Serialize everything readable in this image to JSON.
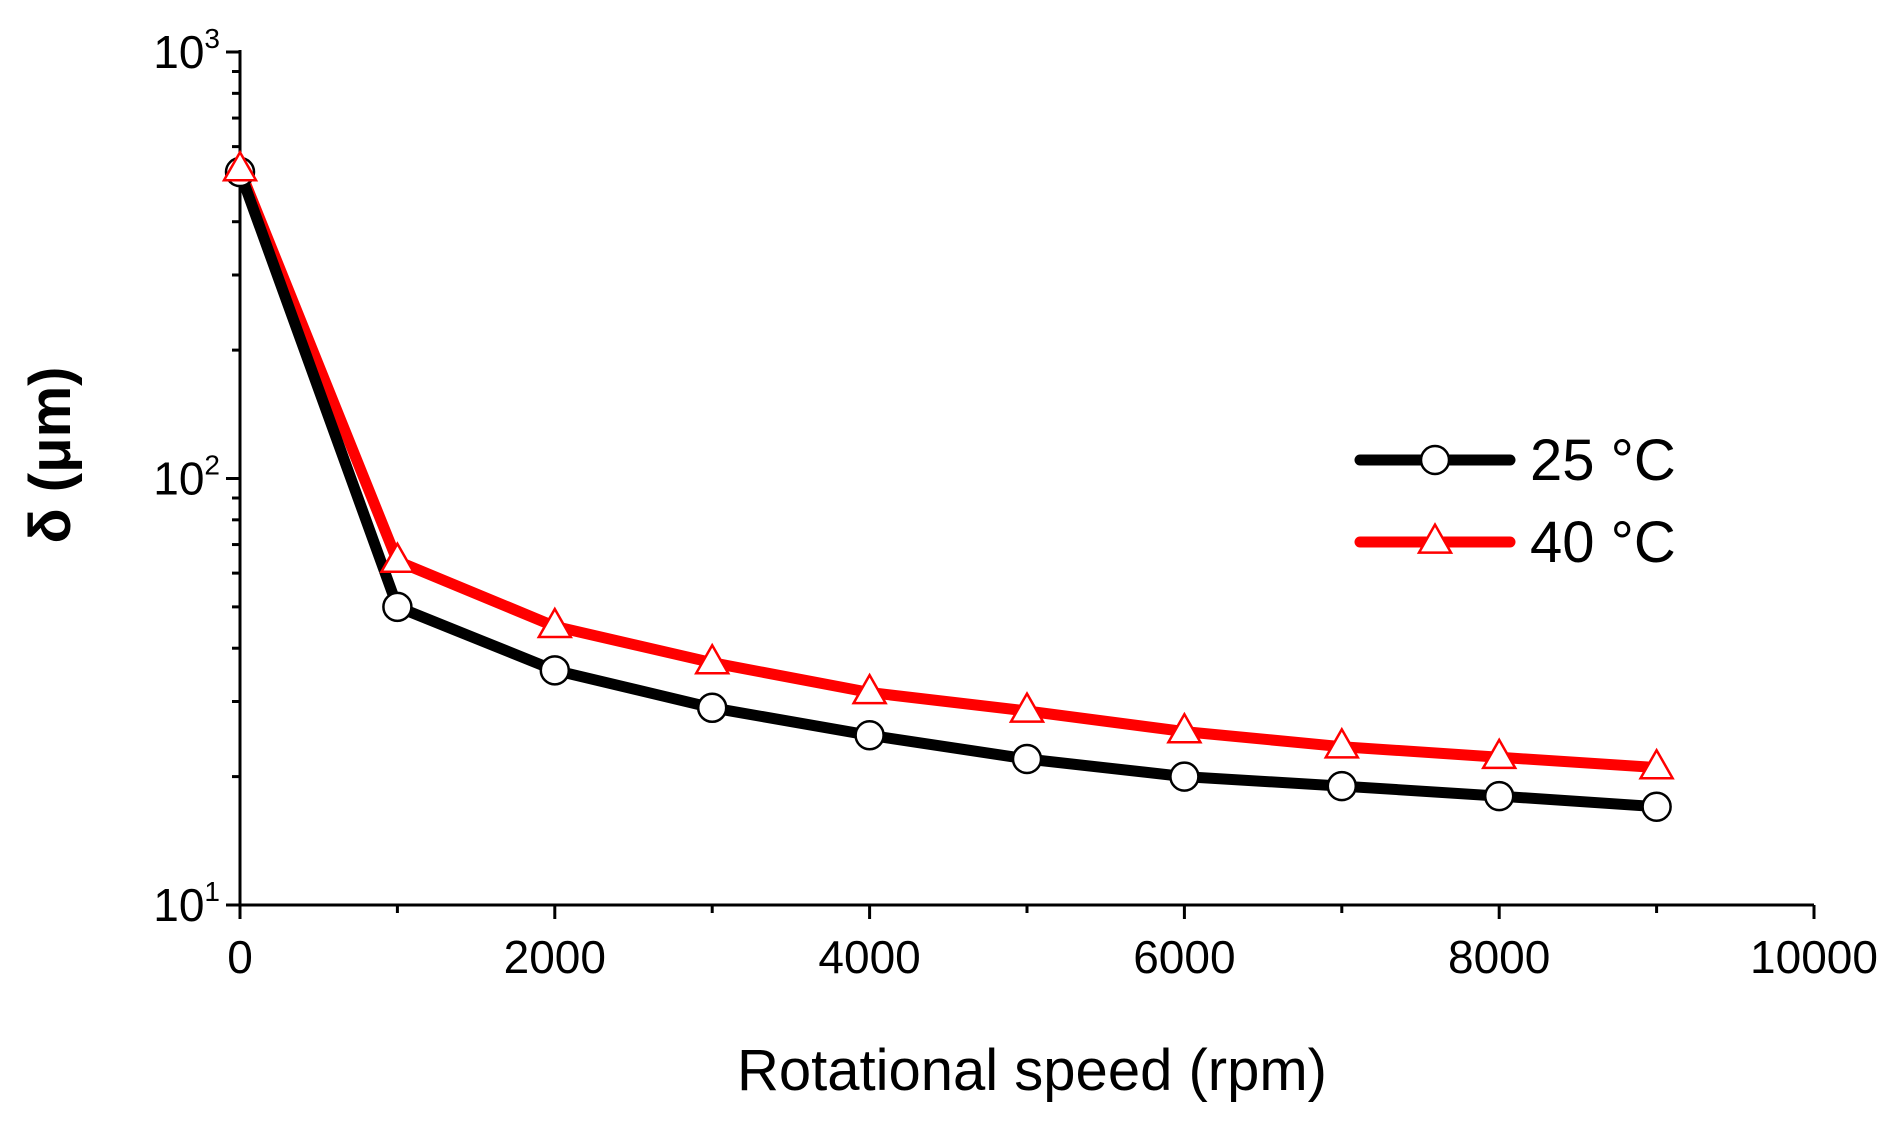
{
  "chart_data": {
    "type": "line",
    "xlabel": "Rotational speed (rpm)",
    "ylabel": "δ (μm)",
    "xlim": [
      0,
      10000
    ],
    "ylim": [
      10,
      1000
    ],
    "yscale": "log",
    "x_ticks": [
      0,
      2000,
      4000,
      6000,
      8000,
      10000
    ],
    "x_tick_labels": [
      "0",
      "2000",
      "4000",
      "6000",
      "8000",
      "10000"
    ],
    "y_ticks": [
      10,
      100,
      1000
    ],
    "y_tick_labels": [
      {
        "base": "10",
        "exp": "1"
      },
      {
        "base": "10",
        "exp": "2"
      },
      {
        "base": "10",
        "exp": "3"
      }
    ],
    "grid": false,
    "legend_position": "right",
    "x": [
      0,
      1000,
      2000,
      3000,
      4000,
      5000,
      6000,
      7000,
      8000,
      9000
    ],
    "series": [
      {
        "name": "25 °C",
        "color": "#000000",
        "marker": "circle",
        "values": [
          523,
          50,
          35.5,
          29,
          25,
          22,
          20,
          19,
          18,
          17
        ]
      },
      {
        "name": "40 °C",
        "color": "#ff0000",
        "marker": "triangle",
        "values": [
          530,
          64,
          45,
          37,
          31.5,
          28.5,
          25.5,
          23.5,
          22.2,
          21
        ]
      }
    ]
  }
}
